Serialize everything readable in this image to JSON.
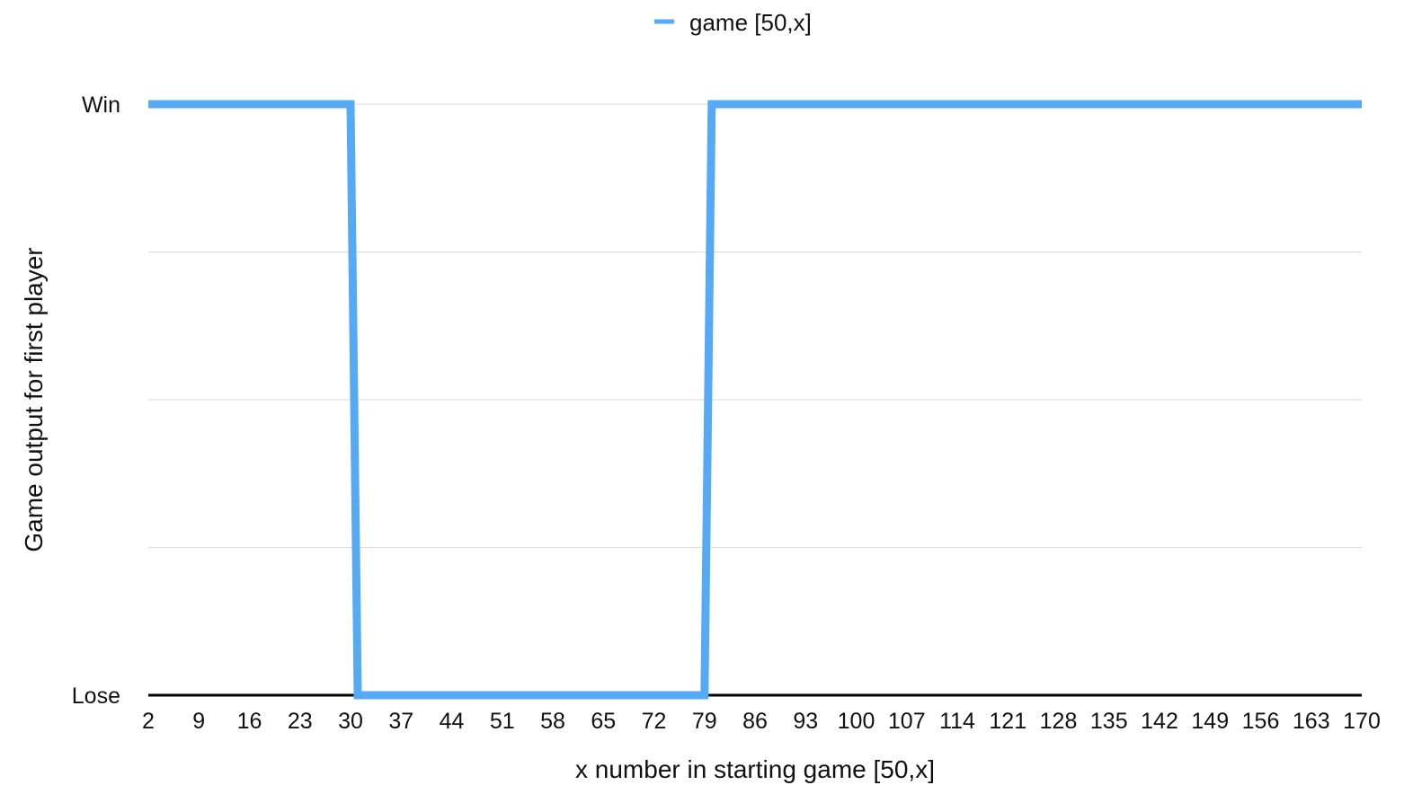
{
  "chart_data": {
    "type": "line",
    "xlabel": "x number in starting game [50,x]",
    "ylabel": "Game output for first player",
    "x_tick_labels": [
      "2",
      "9",
      "16",
      "23",
      "30",
      "37",
      "44",
      "51",
      "58",
      "65",
      "72",
      "79",
      "86",
      "93",
      "100",
      "107",
      "114",
      "121",
      "128",
      "135",
      "142",
      "149",
      "156",
      "163",
      "170"
    ],
    "y_categories": [
      "Lose",
      "Win"
    ],
    "grid": true,
    "legend_position": "top-center",
    "series": [
      {
        "name": "game [50,x]",
        "color": "#56a9f5",
        "points": [
          {
            "x": 2,
            "y": "Win"
          },
          {
            "x": 30,
            "y": "Win"
          },
          {
            "x": 31,
            "y": "Lose"
          },
          {
            "x": 79,
            "y": "Lose"
          },
          {
            "x": 80,
            "y": "Win"
          },
          {
            "x": 170,
            "y": "Win"
          }
        ]
      }
    ]
  }
}
